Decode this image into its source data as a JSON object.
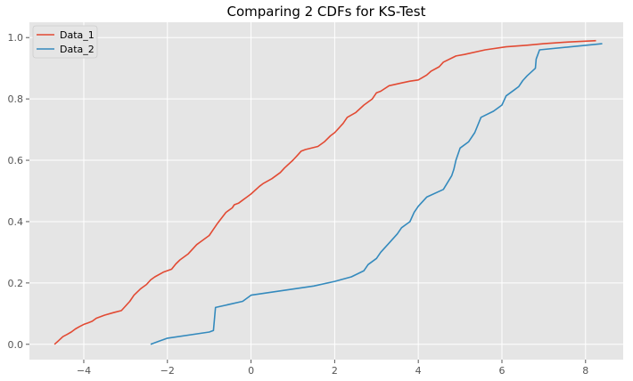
{
  "chart_data": {
    "type": "line",
    "title": "Comparing 2 CDFs for KS-Test",
    "xlabel": "",
    "ylabel": "",
    "xlim": [
      -5.3,
      8.9
    ],
    "ylim": [
      -0.05,
      1.05
    ],
    "x_ticks": [
      -4,
      -2,
      0,
      2,
      4,
      6,
      8
    ],
    "y_ticks": [
      0.0,
      0.2,
      0.4,
      0.6,
      0.8,
      1.0
    ],
    "x_tick_labels": [
      "−4",
      "−2",
      "0",
      "2",
      "4",
      "6",
      "8"
    ],
    "y_tick_labels": [
      "0.0",
      "0.2",
      "0.4",
      "0.6",
      "0.8",
      "1.0"
    ],
    "grid": true,
    "legend_position": "top-left",
    "series": [
      {
        "name": "Data_1",
        "color": "#E24A33",
        "x": [
          -4.7,
          -4.6,
          -4.5,
          -4.4,
          -4.3,
          -4.2,
          -4.1,
          -4.0,
          -3.9,
          -3.8,
          -3.7,
          -3.6,
          -3.5,
          -3.3,
          -3.1,
          -2.9,
          -2.8,
          -2.65,
          -2.6,
          -2.5,
          -2.4,
          -2.3,
          -2.1,
          -1.9,
          -1.8,
          -1.7,
          -1.5,
          -1.3,
          -1.2,
          -1.0,
          -0.9,
          -0.8,
          -0.6,
          -0.45,
          -0.4,
          -0.3,
          -0.2,
          -0.1,
          0.0,
          0.2,
          0.3,
          0.5,
          0.7,
          0.8,
          1.0,
          1.1,
          1.2,
          1.3,
          1.6,
          1.75,
          1.9,
          2.0,
          2.2,
          2.3,
          2.5,
          2.7,
          2.9,
          3.0,
          3.1,
          3.3,
          3.6,
          3.8,
          4.0,
          4.2,
          4.3,
          4.5,
          4.6,
          4.9,
          5.1,
          5.6,
          6.1,
          6.6,
          7.0,
          7.5,
          8.25
        ],
        "y": [
          0.0,
          0.012,
          0.025,
          0.032,
          0.04,
          0.05,
          0.058,
          0.065,
          0.07,
          0.075,
          0.085,
          0.09,
          0.095,
          0.103,
          0.11,
          0.14,
          0.16,
          0.18,
          0.185,
          0.195,
          0.21,
          0.22,
          0.235,
          0.245,
          0.262,
          0.275,
          0.295,
          0.325,
          0.335,
          0.355,
          0.375,
          0.395,
          0.43,
          0.445,
          0.455,
          0.46,
          0.47,
          0.48,
          0.49,
          0.515,
          0.525,
          0.54,
          0.56,
          0.575,
          0.6,
          0.615,
          0.63,
          0.635,
          0.645,
          0.66,
          0.68,
          0.69,
          0.72,
          0.74,
          0.755,
          0.78,
          0.8,
          0.82,
          0.825,
          0.843,
          0.852,
          0.858,
          0.862,
          0.878,
          0.89,
          0.905,
          0.92,
          0.94,
          0.945,
          0.96,
          0.97,
          0.975,
          0.98,
          0.985,
          0.99
        ]
      },
      {
        "name": "Data_2",
        "color": "#348ABD",
        "x": [
          -2.4,
          -2.2,
          -2.0,
          -1.0,
          -0.9,
          -0.85,
          -0.2,
          0.0,
          1.5,
          2.0,
          2.4,
          2.7,
          2.8,
          3.0,
          3.1,
          3.3,
          3.5,
          3.6,
          3.8,
          3.9,
          4.0,
          4.2,
          4.6,
          4.8,
          4.85,
          4.9,
          5.0,
          5.2,
          5.35,
          5.5,
          5.8,
          6.0,
          6.1,
          6.3,
          6.4,
          6.5,
          6.6,
          6.8,
          6.82,
          6.9,
          8.4
        ],
        "y": [
          0.0,
          0.01,
          0.02,
          0.04,
          0.045,
          0.12,
          0.14,
          0.16,
          0.19,
          0.205,
          0.22,
          0.24,
          0.26,
          0.28,
          0.3,
          0.33,
          0.36,
          0.38,
          0.4,
          0.43,
          0.45,
          0.48,
          0.505,
          0.55,
          0.57,
          0.6,
          0.64,
          0.66,
          0.69,
          0.74,
          0.76,
          0.78,
          0.81,
          0.83,
          0.84,
          0.86,
          0.875,
          0.9,
          0.93,
          0.96,
          0.98
        ]
      }
    ]
  }
}
